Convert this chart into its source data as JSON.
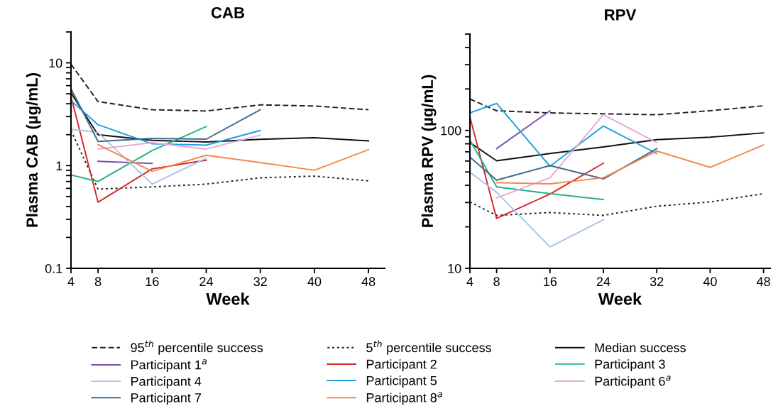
{
  "chart_data": [
    {
      "type": "line",
      "title": "CAB",
      "xlabel": "Week",
      "ylabel": "Plasma CAB (µg/mL)",
      "log": "y",
      "grid": false,
      "legend": "bottom",
      "marker": "none",
      "xlim": [
        4,
        50.4
      ],
      "xticks": [
        4,
        8,
        16,
        24,
        32,
        40,
        48
      ],
      "ylim": [
        0.1,
        20
      ],
      "yticks": [
        0.1,
        {
          "value": 0.2,
          "label": null
        },
        {
          "value": 0.3,
          "label": null
        },
        {
          "value": 0.4,
          "label": null
        },
        {
          "value": 0.5,
          "label": null
        },
        {
          "value": 0.6,
          "label": null
        },
        {
          "value": 0.7,
          "label": null
        },
        {
          "value": 0.8,
          "label": null
        },
        {
          "value": 0.9,
          "label": null
        },
        1,
        {
          "value": 2,
          "label": null
        },
        {
          "value": 3,
          "label": null
        },
        {
          "value": 4,
          "label": null
        },
        {
          "value": 5,
          "label": null
        },
        {
          "value": 6,
          "label": null
        },
        {
          "value": 7,
          "label": null
        },
        {
          "value": 8,
          "label": null
        },
        {
          "value": 9,
          "label": null
        },
        10,
        {
          "value": 20,
          "label": null
        }
      ],
      "series": [
        {
          "name": "95$^{th}$ percentile success",
          "color": "#222222",
          "line_style": "dashed",
          "x": [
            4,
            8,
            16,
            24,
            32,
            40,
            48
          ],
          "values": [
            9.7,
            4.2,
            3.5,
            3.4,
            3.9,
            3.8,
            3.5
          ]
        },
        {
          "name": "5$^{th}$ percentile success",
          "color": "#222222",
          "line_style": "dotted",
          "x": [
            4,
            8,
            16,
            24,
            32,
            40,
            48
          ],
          "values": [
            2.2,
            0.59,
            0.62,
            0.66,
            0.76,
            0.79,
            0.71
          ]
        },
        {
          "name": "Median success",
          "color": "#111111",
          "line_style": "solid",
          "x": [
            4,
            8,
            16,
            24,
            32,
            40,
            48
          ],
          "values": [
            5.1,
            2.0,
            1.76,
            1.7,
            1.8,
            1.87,
            1.74
          ]
        },
        {
          "name": "Participant 1$^{a}$",
          "color": "#7b4fb0",
          "line_style": "solid",
          "x": [
            8,
            16
          ],
          "values": [
            1.1,
            1.05
          ]
        },
        {
          "name": "Participant 2",
          "color": "#d7262b",
          "line_style": "solid",
          "x": [
            4,
            8,
            16,
            24
          ],
          "values": [
            4.7,
            0.44,
            0.93,
            1.13
          ]
        },
        {
          "name": "Participant 3",
          "color": "#1fb384",
          "line_style": "solid",
          "x": [
            4,
            8,
            16,
            24
          ],
          "values": [
            0.81,
            0.7,
            1.4,
            2.4
          ]
        },
        {
          "name": "Participant 4",
          "color": "#a9c4e8",
          "line_style": "solid",
          "x": [
            4,
            8,
            16,
            24
          ],
          "values": [
            2.26,
            2.1,
            0.66,
            1.18
          ]
        },
        {
          "name": "Participant 5",
          "color": "#1fa0e0",
          "line_style": "solid",
          "x": [
            4,
            8,
            16,
            24,
            32
          ],
          "values": [
            4.3,
            2.5,
            1.63,
            1.58,
            2.2
          ]
        },
        {
          "name": "Participant 6$^{a}$",
          "color": "#e6a8d8",
          "line_style": "solid",
          "x": [
            8,
            16,
            24,
            32
          ],
          "values": [
            1.45,
            1.67,
            1.45,
            1.98
          ]
        },
        {
          "name": "Participant 7",
          "color": "#3f6a8f",
          "line_style": "solid",
          "x": [
            4,
            8,
            16,
            24,
            32
          ],
          "values": [
            5.6,
            1.72,
            1.84,
            1.81,
            3.5
          ]
        },
        {
          "name": "Participant 8$^{a}$",
          "color": "#f5894a",
          "line_style": "solid",
          "x": [
            8,
            16,
            24,
            32,
            40,
            48
          ],
          "values": [
            1.6,
            0.88,
            1.26,
            1.07,
            0.9,
            1.43
          ]
        }
      ]
    },
    {
      "type": "line",
      "title": "RPV",
      "xlabel": "Week",
      "ylabel": "Plasma RPV (µg/mL)",
      "log": "y",
      "grid": false,
      "marker": "none",
      "xlim": [
        4,
        49
      ],
      "xticks": [
        4,
        8,
        16,
        24,
        32,
        40,
        48
      ],
      "ylim": [
        10,
        500
      ],
      "yticks": [
        10,
        {
          "value": 20,
          "label": null
        },
        {
          "value": 30,
          "label": null
        },
        {
          "value": 40,
          "label": null
        },
        {
          "value": 50,
          "label": null
        },
        {
          "value": 60,
          "label": null
        },
        {
          "value": 70,
          "label": null
        },
        {
          "value": 80,
          "label": null
        },
        {
          "value": 90,
          "label": null
        },
        100,
        {
          "value": 200,
          "label": null
        },
        {
          "value": 300,
          "label": null
        },
        {
          "value": 400,
          "label": null
        },
        {
          "value": 500,
          "label": null
        }
      ],
      "series": [
        {
          "color": "#222222",
          "line_style": "dashed",
          "x": [
            4,
            8,
            16,
            24,
            32,
            40,
            48
          ],
          "values": [
            169,
            139,
            134,
            132,
            130,
            139,
            151
          ]
        },
        {
          "color": "#222222",
          "line_style": "dotted",
          "x": [
            4,
            8,
            16,
            24,
            32,
            40,
            48
          ],
          "values": [
            30.3,
            24.2,
            25.4,
            24.2,
            28.2,
            30.3,
            34.8
          ]
        },
        {
          "color": "#111111",
          "line_style": "solid",
          "x": [
            4,
            8,
            16,
            24,
            32,
            40,
            48
          ],
          "values": [
            81.7,
            60.3,
            68,
            76,
            85.8,
            89.3,
            96
          ]
        },
        {
          "color": "#7b4fb0",
          "line_style": "solid",
          "x": [
            8,
            16
          ],
          "values": [
            73.8,
            139
          ]
        },
        {
          "color": "#d7262b",
          "line_style": "solid",
          "x": [
            4,
            8,
            16,
            24
          ],
          "values": [
            125,
            23,
            34.6,
            57.8
          ]
        },
        {
          "color": "#1fb384",
          "line_style": "solid",
          "x": [
            4,
            8,
            16,
            24
          ],
          "values": [
            85,
            39,
            34.8,
            31.5
          ]
        },
        {
          "color": "#a9c4e8",
          "line_style": "solid",
          "x": [
            4,
            8,
            16,
            24
          ],
          "values": [
            49.8,
            35.6,
            14.3,
            22.5
          ]
        },
        {
          "color": "#1fa0e0",
          "line_style": "solid",
          "x": [
            4,
            8,
            16,
            24,
            32
          ],
          "values": [
            134,
            157,
            55,
            107.6,
            68
          ]
        },
        {
          "color": "#e6a8d8",
          "line_style": "solid",
          "x": [
            8,
            16,
            24,
            32
          ],
          "values": [
            32.4,
            45.4,
            130,
            81.7
          ]
        },
        {
          "color": "#3f6a8f",
          "line_style": "solid",
          "x": [
            4,
            8,
            16,
            24,
            32
          ],
          "values": [
            64,
            43.6,
            55.6,
            44.5,
            73.8
          ]
        },
        {
          "color": "#f5894a",
          "line_style": "solid",
          "x": [
            8,
            16,
            24,
            32,
            40,
            48
          ],
          "values": [
            41.8,
            41,
            45.4,
            70.9,
            54,
            78.4
          ]
        }
      ]
    }
  ]
}
